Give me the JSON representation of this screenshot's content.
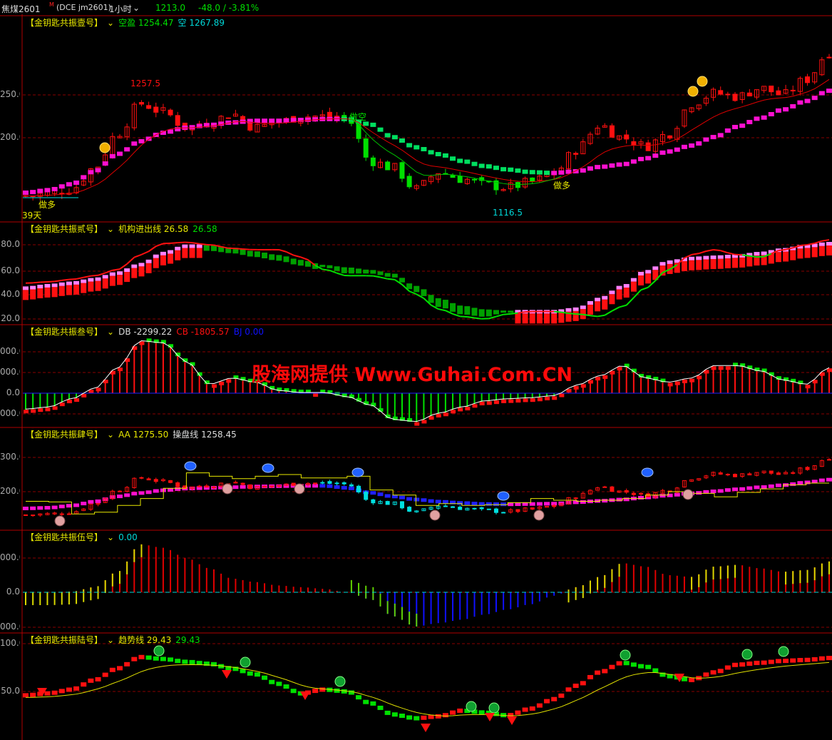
{
  "header": {
    "symbol": "焦煤2601",
    "symbol_badge": "M",
    "exchange": "(DCE  jm2601)",
    "period": "1小时",
    "period_chevron": "chevron-down-icon",
    "last_price": "1213.0",
    "change": "-48.0 / -3.81%"
  },
  "panels": [
    {
      "title": "【金钥匙共振壹号】",
      "values": [
        {
          "label": "空盈 1254.47",
          "color": "#00e000"
        },
        {
          "label": "空 1267.89",
          "color": "#00d8d8"
        }
      ],
      "axis": [
        "250.0",
        "200.0"
      ],
      "annotations": {
        "high": "1257.5",
        "low": "1116.5",
        "short": "做空",
        "long1": "做多",
        "long2": "做多",
        "days": "39天"
      }
    },
    {
      "title": "【金钥匙共振贰号】",
      "values": [
        {
          "label": "机构进出线 26.58",
          "color": "#e8e800"
        },
        {
          "label": "26.58",
          "color": "#00e000"
        }
      ],
      "axis": [
        "80.0",
        "60.0",
        "40.0",
        "20.0"
      ]
    },
    {
      "title": "【金钥匙共振叁号】",
      "values": [
        {
          "label": "DB -2299.22",
          "color": "#dddddd"
        },
        {
          "label": "CB -1805.57",
          "color": "#ff1010"
        },
        {
          "label": "BJ 0.00",
          "color": "#1010ff"
        }
      ],
      "axis": [
        "000.0",
        "000.0",
        "0.0",
        "000.0"
      ]
    },
    {
      "title": "【金钥匙共振肆号】",
      "values": [
        {
          "label": "AA 1275.50",
          "color": "#e8e800"
        },
        {
          "label": "操盘线 1258.45",
          "color": "#dddddd"
        }
      ],
      "axis": [
        "300.0",
        "200.0"
      ]
    },
    {
      "title": "【金钥匙共振伍号】",
      "values": [
        {
          "label": "0.00",
          "color": "#00d8d8"
        }
      ],
      "axis": [
        "000.0",
        "0.0",
        "000.0"
      ]
    },
    {
      "title": "【金钥匙共振陆号】",
      "values": [
        {
          "label": "趋势线 29.43",
          "color": "#e8e800"
        },
        {
          "label": "29.43",
          "color": "#00e000"
        }
      ],
      "axis": [
        "100.0",
        "50.0"
      ]
    }
  ],
  "watermark": "股海网提供 Www.Guhai.Com.CN",
  "colors": {
    "up": "#ff1010",
    "down": "#00e000",
    "border": "#b00000",
    "ribbon_up": "#ff10d0",
    "ribbon_down": "#00e060",
    "title": "#e8e800"
  },
  "chart_data": [
    {
      "type": "candlestick",
      "panel": 1,
      "y_ticks": [
        1250,
        1200
      ],
      "close": [
        1132,
        1135,
        1140,
        1165,
        1205,
        1240,
        1230,
        1212,
        1218,
        1228,
        1212,
        1218,
        1225,
        1225,
        1222,
        1173,
        1165,
        1140,
        1160,
        1152,
        1145,
        1142,
        1148,
        1158,
        1186,
        1215,
        1200,
        1190,
        1205,
        1240,
        1252,
        1248,
        1258,
        1250,
        1268,
        1300
      ],
      "ma_ribbon": [
        1135,
        1138,
        1145,
        1160,
        1180,
        1195,
        1205,
        1211,
        1214,
        1217,
        1219,
        1219,
        1220,
        1221,
        1221,
        1215,
        1200,
        1188,
        1180,
        1172,
        1166,
        1162,
        1159,
        1158,
        1160,
        1165,
        1168,
        1175,
        1183,
        1190,
        1200,
        1212,
        1222,
        1232,
        1242,
        1254
      ]
    },
    {
      "type": "line",
      "panel": 2,
      "y_ticks": [
        80,
        60,
        40,
        20
      ],
      "line": [
        49,
        50,
        52,
        55,
        60,
        72,
        81,
        82,
        80,
        77,
        76,
        76,
        70,
        60,
        55,
        55,
        52,
        40,
        28,
        22,
        20,
        24,
        26,
        26,
        24,
        22,
        30,
        45,
        60,
        72,
        76,
        72,
        70,
        76,
        80,
        84
      ],
      "ribbon": [
        44,
        46,
        48,
        51,
        56,
        63,
        72,
        78,
        78,
        76,
        73,
        70,
        66,
        62,
        60,
        58,
        55,
        45,
        35,
        29,
        26,
        25,
        25,
        25,
        27,
        35,
        45,
        57,
        65,
        68,
        69,
        70,
        72,
        75,
        78,
        80
      ]
    },
    {
      "type": "bar",
      "panel": 3,
      "y_ticks": [
        2000,
        1000,
        0,
        -1000
      ],
      "values": [
        -800,
        -700,
        -300,
        200,
        1200,
        2500,
        2400,
        1500,
        400,
        700,
        500,
        100,
        0,
        0,
        -200,
        -600,
        -1300,
        -1400,
        -1000,
        -700,
        -400,
        -300,
        -250,
        -150,
        350,
        800,
        1300,
        700,
        500,
        700,
        1300,
        1300,
        1050,
        600,
        400,
        1200
      ]
    },
    {
      "type": "candlestick",
      "panel": 4,
      "y_ticks": [
        1300,
        1200
      ],
      "ribbon": [
        1150,
        1152,
        1158,
        1170,
        1185,
        1195,
        1203,
        1208,
        1210,
        1212,
        1214,
        1215,
        1216,
        1216,
        1210,
        1196,
        1185,
        1176,
        1170,
        1166,
        1163,
        1162,
        1163,
        1164,
        1168,
        1172,
        1176,
        1182,
        1188,
        1194,
        1200,
        1206,
        1212,
        1218,
        1226,
        1234
      ],
      "step_line": [
        1172,
        1170,
        1135,
        1140,
        1160,
        1180,
        1210,
        1255,
        1245,
        1238,
        1245,
        1250,
        1240,
        1240,
        1245,
        1205,
        1190,
        1160,
        1165,
        1160,
        1162,
        1168,
        1180,
        1175,
        1172,
        1175,
        1180,
        1190,
        1200,
        1195,
        1185,
        1198,
        1208,
        1220,
        1225,
        1225
      ]
    },
    {
      "type": "bar",
      "panel": 5,
      "y_ticks": [
        1000,
        0,
        -1000
      ],
      "values": [
        0,
        0,
        20,
        150,
        600,
        1400,
        1300,
        1000,
        700,
        400,
        300,
        200,
        150,
        100,
        0,
        -200,
        -700,
        -1000,
        -900,
        -800,
        -650,
        -500,
        -350,
        -100,
        150,
        450,
        850,
        750,
        500,
        450,
        750,
        800,
        700,
        600,
        650,
        900
      ]
    },
    {
      "type": "line",
      "panel": 6,
      "y_ticks": [
        100,
        50
      ],
      "ribbon": [
        46,
        48,
        52,
        62,
        74,
        86,
        84,
        81,
        79,
        74,
        68,
        58,
        48,
        52,
        50,
        38,
        26,
        22,
        24,
        30,
        28,
        25,
        32,
        42,
        56,
        70,
        80,
        76,
        66,
        62,
        70,
        78,
        80,
        82,
        83,
        85
      ]
    }
  ]
}
